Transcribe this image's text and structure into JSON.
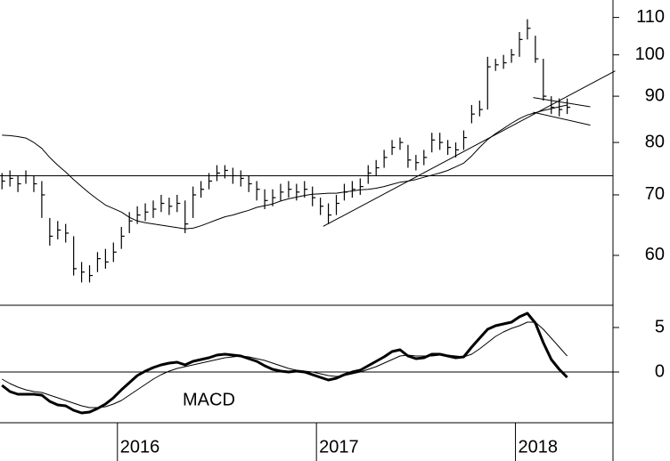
{
  "chart_data": [
    {
      "type": "ohlc",
      "x": [
        2015.42,
        2015.46,
        2015.5,
        2015.54,
        2015.58,
        2015.62,
        2015.66,
        2015.7,
        2015.74,
        2015.78,
        2015.82,
        2015.86,
        2015.9,
        2015.94,
        2015.98,
        2016.02,
        2016.06,
        2016.1,
        2016.14,
        2016.18,
        2016.22,
        2016.26,
        2016.3,
        2016.34,
        2016.38,
        2016.42,
        2016.46,
        2016.5,
        2016.54,
        2016.58,
        2016.62,
        2016.66,
        2016.7,
        2016.74,
        2016.78,
        2016.82,
        2016.86,
        2016.9,
        2016.94,
        2016.98,
        2017.02,
        2017.06,
        2017.1,
        2017.14,
        2017.18,
        2017.22,
        2017.26,
        2017.3,
        2017.34,
        2017.38,
        2017.42,
        2017.46,
        2017.5,
        2017.54,
        2017.58,
        2017.62,
        2017.66,
        2017.7,
        2017.74,
        2017.78,
        2017.82,
        2017.86,
        2017.9,
        2017.94,
        2017.98,
        2018.02,
        2018.06,
        2018.1,
        2018.14,
        2018.18,
        2018.22,
        2018.26
      ],
      "high": [
        74,
        74.5,
        73.5,
        74.5,
        73.5,
        72.5,
        66,
        65.5,
        65,
        63,
        59,
        58.5,
        60.5,
        61,
        62,
        64.5,
        67,
        68,
        68.5,
        69,
        70,
        69.5,
        70,
        69,
        71.5,
        72.5,
        74,
        75.5,
        75.5,
        75,
        74.5,
        73.5,
        72.5,
        71,
        71,
        72,
        72.5,
        72,
        72.5,
        71.5,
        69.5,
        68.5,
        70,
        72,
        72.5,
        73,
        75.5,
        76.5,
        78.5,
        80.5,
        81,
        79.5,
        77.5,
        78.5,
        82,
        82,
        80.5,
        80,
        82.5,
        88,
        89,
        99.5,
        99,
        100,
        101.5,
        106,
        109.5,
        105,
        99,
        90,
        89.5,
        89.5
      ],
      "low": [
        71,
        71.5,
        70.5,
        72,
        70.5,
        66,
        61.5,
        62.5,
        62,
        57,
        56,
        56,
        57.5,
        58,
        59,
        61,
        63.5,
        65,
        65.5,
        66,
        67,
        66.5,
        67,
        63.5,
        66,
        69.5,
        71,
        72.5,
        73,
        72,
        71.5,
        70.5,
        69,
        67.5,
        68,
        69,
        69.5,
        69,
        69.5,
        68,
        66.5,
        65,
        66.5,
        69,
        69.5,
        70,
        72,
        73.5,
        75,
        77.5,
        78.5,
        75,
        74.5,
        75.5,
        78,
        78.5,
        77.5,
        77,
        78.5,
        84,
        85.5,
        87,
        96,
        96.5,
        98,
        99.5,
        104,
        98,
        89,
        86,
        85.5,
        86
      ],
      "close": [
        72.5,
        73,
        72,
        73.5,
        72,
        70,
        63,
        64,
        63.5,
        58,
        57.5,
        57,
        59.5,
        59,
        60.5,
        63,
        65.5,
        66.5,
        67,
        67.5,
        68.5,
        68,
        68.5,
        65,
        70,
        71,
        72.5,
        74,
        74.5,
        73.5,
        73,
        72,
        71,
        69,
        69.5,
        70.5,
        71,
        70.5,
        71,
        69.5,
        68,
        66.5,
        68.5,
        70.5,
        71,
        71.5,
        74,
        75,
        77,
        79,
        80,
        76.5,
        76,
        77,
        80.5,
        80,
        79,
        78.5,
        81,
        86,
        87,
        97,
        97.5,
        98,
        100,
        104,
        107,
        99,
        90,
        87.5,
        87,
        87.5
      ],
      "color": "#000000",
      "overlays": [
        {
          "color": "#000000",
          "values": [
            81.5,
            81.4,
            81.2,
            80.9,
            80,
            78.8,
            77,
            75.5,
            74.2,
            72.8,
            71.5,
            70.3,
            69.2,
            68.2,
            67.6,
            67,
            66.1,
            65.5,
            65.2,
            65,
            64.8,
            64.6,
            64.4,
            64.2,
            64.3,
            64.7,
            65.2,
            65.7,
            66.2,
            66.5,
            66.9,
            67.3,
            67.8,
            68.1,
            68.4,
            68.9,
            69.3,
            69.6,
            69.9,
            70.1,
            70.2,
            70.3,
            70.3,
            70.5,
            70.7,
            70.9,
            71,
            71.2,
            71.5,
            71.9,
            72.3,
            72.5,
            72.8,
            73.2,
            73.6,
            74,
            74.5,
            75.2,
            75.9,
            77.3,
            79,
            80.6,
            81.8,
            82.9,
            84,
            85,
            85.8,
            86.3,
            86.8,
            87.2,
            87.6,
            88
          ]
        }
      ],
      "trendlines": [
        {
          "x": [
            2015.41,
            2018.49
          ],
          "y": [
            73.5,
            73.5
          ]
        },
        {
          "x": [
            2017.034,
            2018.501
          ],
          "y": [
            64.6,
            96.0
          ]
        },
        {
          "x": [
            2018.089,
            2018.376
          ],
          "y": [
            89.7,
            87.6
          ]
        },
        {
          "x": [
            2018.089,
            2018.376
          ],
          "y": [
            86.4,
            83.6
          ]
        }
      ],
      "xlim": [
        2015.41,
        2018.49
      ],
      "ylim": [
        53.2,
        115
      ],
      "log_scale": true,
      "yticks": [
        60,
        70,
        80,
        90,
        100,
        110
      ]
    },
    {
      "type": "line",
      "title": "MACD",
      "x": [
        2015.42,
        2015.46,
        2015.5,
        2015.54,
        2015.58,
        2015.62,
        2015.66,
        2015.7,
        2015.74,
        2015.78,
        2015.82,
        2015.86,
        2015.9,
        2015.94,
        2015.98,
        2016.02,
        2016.06,
        2016.1,
        2016.14,
        2016.18,
        2016.22,
        2016.26,
        2016.3,
        2016.34,
        2016.38,
        2016.42,
        2016.46,
        2016.5,
        2016.54,
        2016.58,
        2016.62,
        2016.66,
        2016.7,
        2016.74,
        2016.78,
        2016.82,
        2016.86,
        2016.9,
        2016.94,
        2016.98,
        2017.02,
        2017.06,
        2017.1,
        2017.14,
        2017.18,
        2017.22,
        2017.26,
        2017.3,
        2017.34,
        2017.38,
        2017.42,
        2017.46,
        2017.5,
        2017.54,
        2017.58,
        2017.62,
        2017.66,
        2017.7,
        2017.74,
        2017.78,
        2017.82,
        2017.86,
        2017.9,
        2017.94,
        2017.98,
        2018.02,
        2018.06,
        2018.1,
        2018.14,
        2018.18,
        2018.22,
        2018.26
      ],
      "series": [
        {
          "color": "#000000",
          "width": 3,
          "values": [
            -1.5,
            -2.2,
            -2.5,
            -2.5,
            -2.5,
            -2.6,
            -3.3,
            -3.7,
            -3.8,
            -4.3,
            -4.6,
            -4.5,
            -4.1,
            -3.6,
            -2.9,
            -2,
            -1.2,
            -0.4,
            0.1,
            0.5,
            0.8,
            1.0,
            1.1,
            0.8,
            1.2,
            1.4,
            1.6,
            1.9,
            2.0,
            1.9,
            1.8,
            1.5,
            1.2,
            0.7,
            0.3,
            0.1,
            0,
            0.1,
            0,
            -0.3,
            -0.6,
            -0.9,
            -0.7,
            -0.3,
            0,
            0.2,
            0.7,
            1.2,
            1.7,
            2.3,
            2.5,
            1.8,
            1.5,
            1.6,
            2.0,
            2.0,
            1.8,
            1.6,
            1.7,
            2.8,
            3.8,
            4.8,
            5.2,
            5.4,
            5.6,
            6.2,
            6.6,
            5.5,
            3.3,
            1.4,
            0.3,
            -0.6
          ]
        },
        {
          "color": "#000000",
          "width": 1,
          "values": [
            -0.8,
            -1.3,
            -1.7,
            -2.0,
            -2.2,
            -2.3,
            -2.6,
            -2.9,
            -3.2,
            -3.5,
            -3.8,
            -4.0,
            -4.0,
            -3.9,
            -3.6,
            -3.2,
            -2.6,
            -2.0,
            -1.4,
            -0.8,
            -0.3,
            0.1,
            0.4,
            0.6,
            0.8,
            1.0,
            1.2,
            1.4,
            1.6,
            1.7,
            1.8,
            1.7,
            1.5,
            1.3,
            1.0,
            0.7,
            0.4,
            0.2,
            0.1,
            0,
            -0.2,
            -0.4,
            -0.5,
            -0.4,
            -0.2,
            0,
            0.3,
            0.6,
            1.0,
            1.4,
            1.8,
            1.9,
            1.8,
            1.8,
            1.8,
            1.9,
            1.9,
            1.8,
            1.7,
            2.0,
            2.6,
            3.3,
            4.0,
            4.5,
            4.9,
            5.2,
            5.6,
            5.6,
            4.8,
            3.8,
            2.8,
            1.8
          ]
        }
      ],
      "hlines": [
        0
      ],
      "xlim": [
        2015.41,
        2018.49
      ],
      "xticks": [
        2016,
        2017,
        2018
      ],
      "ylim": [
        -5.7,
        7.5
      ],
      "yticks": [
        0,
        5
      ]
    }
  ]
}
